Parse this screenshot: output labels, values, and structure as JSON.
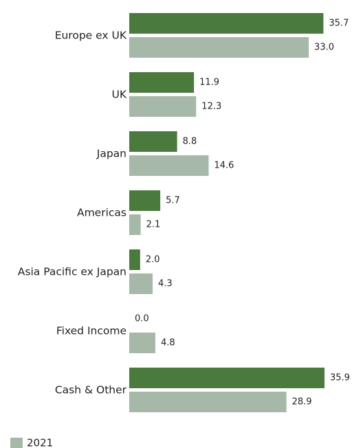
{
  "chart_data": {
    "type": "bar",
    "orientation": "horizontal",
    "categories": [
      "Europe ex UK",
      "UK",
      "Japan",
      "Americas",
      "Asia Pacific ex Japan",
      "Fixed Income",
      "Cash & Other"
    ],
    "series": [
      {
        "values": [
          35.7,
          11.9,
          8.8,
          5.7,
          2.0,
          0.0,
          35.9
        ],
        "color": "#4a7a3c"
      },
      {
        "name": "2021",
        "values": [
          33.0,
          12.3,
          14.6,
          2.1,
          4.3,
          4.8,
          28.9
        ],
        "color": "#a6b9a9"
      }
    ],
    "value_labels": [
      [
        "35.7",
        "11.9",
        "8.8",
        "5.7",
        "2.0",
        "0.0",
        "35.9"
      ],
      [
        "33.0",
        "12.3",
        "14.6",
        "2.1",
        "4.3",
        "4.8",
        "28.9"
      ]
    ],
    "xlim": [
      0,
      35.9
    ],
    "grid": false,
    "legend": {
      "placement": "bottom-left",
      "entries": [
        "2021"
      ]
    }
  }
}
